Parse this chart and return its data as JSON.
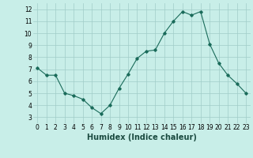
{
  "x": [
    0,
    1,
    2,
    3,
    4,
    5,
    6,
    7,
    8,
    9,
    10,
    11,
    12,
    13,
    14,
    15,
    16,
    17,
    18,
    19,
    20,
    21,
    22,
    23
  ],
  "y": [
    7.1,
    6.5,
    6.5,
    5.0,
    4.8,
    4.5,
    3.8,
    3.3,
    4.0,
    5.4,
    6.6,
    7.9,
    8.5,
    8.6,
    10.0,
    11.0,
    11.8,
    11.5,
    11.8,
    9.1,
    7.5,
    6.5,
    5.8,
    5.0
  ],
  "line_color": "#1a6b5a",
  "bg_color": "#c8eee8",
  "grid_color": "#a0ccc8",
  "xlabel": "Humidex (Indice chaleur)",
  "xlim": [
    -0.5,
    23.5
  ],
  "ylim": [
    2.5,
    12.5
  ],
  "yticks": [
    3,
    4,
    5,
    6,
    7,
    8,
    9,
    10,
    11,
    12
  ],
  "xticks": [
    0,
    1,
    2,
    3,
    4,
    5,
    6,
    7,
    8,
    9,
    10,
    11,
    12,
    13,
    14,
    15,
    16,
    17,
    18,
    19,
    20,
    21,
    22,
    23
  ],
  "tick_fontsize": 5.5,
  "xlabel_fontsize": 7.0,
  "marker": "D",
  "marker_size": 1.8,
  "line_width": 0.8
}
